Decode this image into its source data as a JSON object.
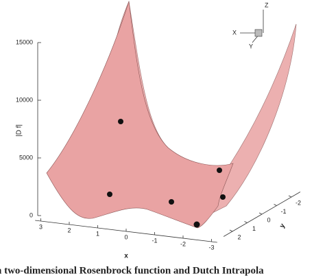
{
  "chart_data": {
    "type": "surface3d",
    "xlabel": "x",
    "ylabel": "y",
    "zlabel": "|D f|",
    "xlim": [
      3.2,
      -3.2
    ],
    "xticks": [
      3,
      2,
      1,
      0,
      -1,
      -2,
      -3
    ],
    "ylim": [
      2.6,
      -2.6
    ],
    "yticks": [
      2,
      1,
      0,
      -1,
      -2
    ],
    "zlim": [
      0,
      15000
    ],
    "zticks": [
      0,
      5000,
      10000,
      15000
    ],
    "color": "#e9a3a3",
    "orientation_axes": [
      "X",
      "Y",
      "Z"
    ],
    "caption": "n two-dimensional Rosenbrock function and Dutch Intrapola"
  }
}
